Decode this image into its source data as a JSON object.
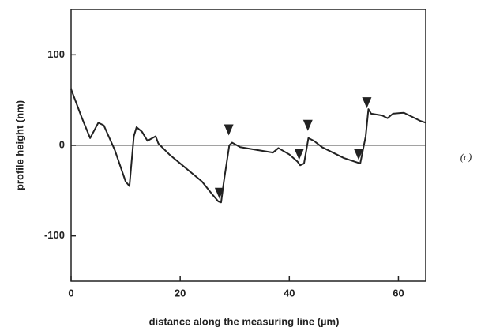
{
  "chart_data": {
    "type": "line",
    "x_label": "distance along the measuring line (µm)",
    "y_label": "profile height (nm)",
    "annotation": "(c)",
    "x": [
      0,
      2,
      3.5,
      5,
      6,
      8,
      10,
      10.7,
      11.5,
      12,
      13,
      14,
      15.5,
      16,
      18,
      20,
      22,
      24,
      26,
      27,
      27.5,
      28,
      29,
      29.5,
      31,
      34,
      37,
      38,
      40,
      41.5,
      42,
      42.7,
      43.5,
      44.5,
      46,
      48,
      50,
      52,
      53,
      54,
      54.5,
      55,
      57,
      58,
      59,
      61,
      62,
      64,
      65
    ],
    "values": [
      62,
      30,
      8,
      25,
      22,
      -5,
      -40,
      -45,
      10,
      20,
      15,
      5,
      10,
      2,
      -10,
      -20,
      -30,
      -40,
      -55,
      -62,
      -63,
      -40,
      0,
      3,
      -2,
      -5,
      -8,
      -3,
      -10,
      -18,
      -22,
      -20,
      8,
      5,
      -2,
      -8,
      -14,
      -18,
      -20,
      10,
      40,
      35,
      33,
      30,
      35,
      36,
      33,
      27,
      25
    ],
    "color": "#222222",
    "markers": {
      "x": [
        27.2,
        28.9,
        41.8,
        43.4,
        52.7,
        54.2
      ],
      "y": [
        -53,
        17,
        -10,
        22,
        -10,
        47
      ]
    },
    "xlim": [
      0,
      65
    ],
    "ylim": [
      -150,
      150
    ],
    "xticks": [
      0,
      20,
      40,
      60
    ],
    "yticks": [
      -100,
      0,
      100
    ],
    "zero_line": true
  }
}
